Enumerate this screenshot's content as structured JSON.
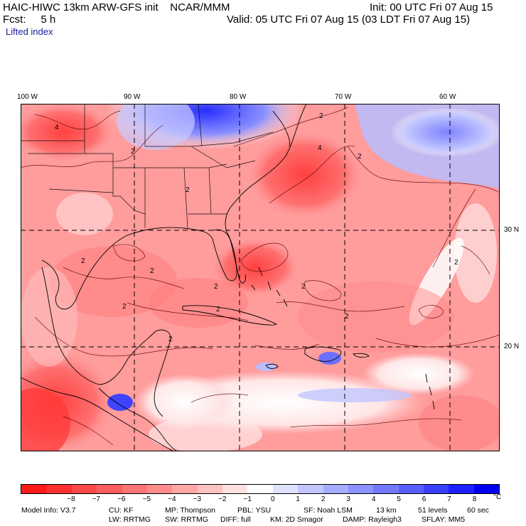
{
  "header": {
    "title": "HAIC-HIWC 13km ARW-GFS init    NCAR/MMM",
    "init": "Init: 00 UTC Fri 07 Aug 15",
    "fcst": "Fcst:     5 h",
    "valid": "Valid: 05 UTC Fri 07 Aug 15 (03 LDT Fri 07 Aug 15)",
    "field": "Lifted index"
  },
  "map": {
    "lon_labels": [
      "100 W",
      "90 W",
      "80 W",
      "70 W",
      "60 W"
    ],
    "lat_labels": [
      "30 N",
      "20 N"
    ],
    "contour_labels": [
      "4",
      "2",
      "2",
      "4",
      "2",
      "2",
      "2",
      "2",
      "2",
      "2",
      "2",
      "2",
      "2",
      "2",
      "2"
    ]
  },
  "colorbar": {
    "labels": [
      "−8",
      "−7",
      "−6",
      "−5",
      "−4",
      "−3",
      "−2",
      "−1",
      "0",
      "1",
      "2",
      "3",
      "4",
      "5",
      "6",
      "7",
      "8"
    ],
    "unit": "°C",
    "colors": [
      "#ff1a1a",
      "#ff3030",
      "#ff4848",
      "#ff5e5e",
      "#ff7575",
      "#ff8c8c",
      "#ffa6a6",
      "#ffc2c2",
      "#ffe0e0",
      "#ffffff",
      "#e0e2ff",
      "#c2c6ff",
      "#a6acff",
      "#8c92ff",
      "#7278ff",
      "#585eff",
      "#3a40ff",
      "#1e20ff",
      "#0000f0"
    ]
  },
  "footer": {
    "line1": [
      "Model Info: V3.7",
      "CU: KF",
      "MP: Thompson",
      "PBL: YSU",
      "SF: Noah LSM",
      "13 km",
      "51 levels",
      "60 sec"
    ],
    "line2": [
      "LW: RRTMG",
      "SW: RRTMG",
      "DIFF: full",
      "KM: 2D Smagor",
      "DAMP: Rayleigh3",
      "SFLAY: MM5"
    ]
  }
}
